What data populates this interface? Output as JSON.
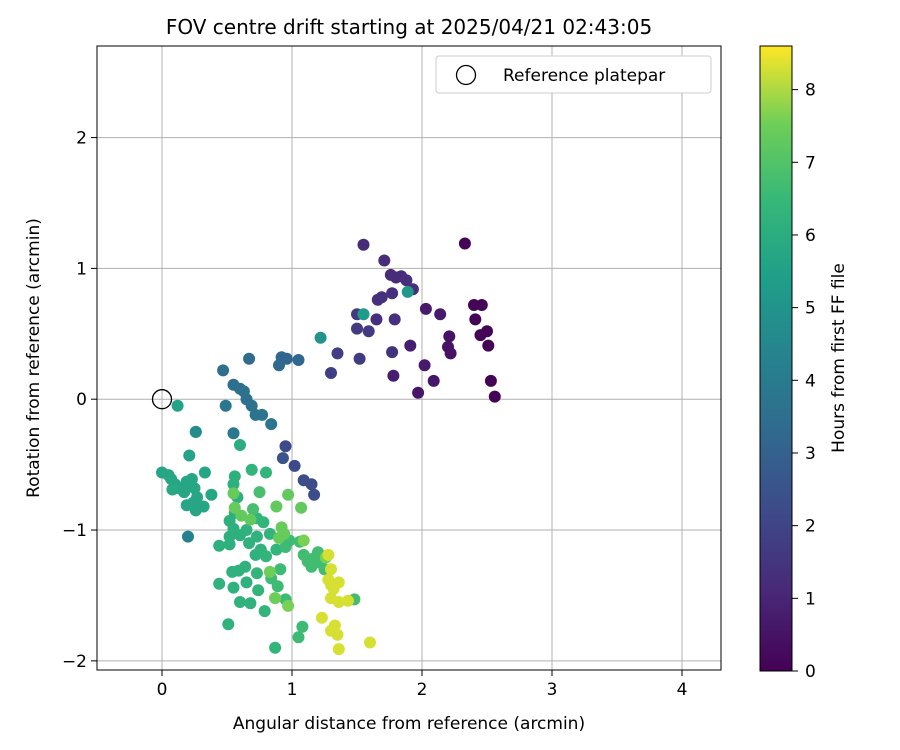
{
  "chart_data": {
    "type": "scatter",
    "title": "FOV centre drift starting at 2025/04/21 02:43:05",
    "xlabel": "Angular distance from reference (arcmin)",
    "ylabel": "Rotation from reference (arcmin)",
    "xlim": [
      -0.5,
      4.3
    ],
    "ylim": [
      -2.07,
      2.7
    ],
    "xticks": [
      0,
      1,
      2,
      3,
      4
    ],
    "yticks": [
      -2,
      -1,
      0,
      1,
      2
    ],
    "xtick_labels": [
      "0",
      "1",
      "2",
      "3",
      "4"
    ],
    "ytick_labels": [
      "−2",
      "−1",
      "0",
      "1",
      "2"
    ],
    "grid": true,
    "legend": {
      "placement": "top-right",
      "entries": [
        "Reference platepar"
      ]
    },
    "reference_point": {
      "x": 0,
      "y": 0
    },
    "colorbar": {
      "label": "Hours from first FF file",
      "range": [
        0,
        8.6
      ],
      "ticks": [
        0,
        1,
        2,
        3,
        4,
        5,
        6,
        7,
        8
      ],
      "tick_labels": [
        "0",
        "1",
        "2",
        "3",
        "4",
        "5",
        "6",
        "7",
        "8"
      ],
      "colormap": "viridis"
    },
    "points": [
      [
        2.33,
        1.19,
        0.1
      ],
      [
        2.4,
        0.72,
        0.1
      ],
      [
        2.46,
        0.72,
        0.1
      ],
      [
        2.41,
        0.61,
        0.1
      ],
      [
        2.45,
        0.49,
        0.1
      ],
      [
        2.5,
        0.52,
        0.1
      ],
      [
        2.51,
        0.41,
        0.1
      ],
      [
        2.53,
        0.14,
        0.1
      ],
      [
        2.56,
        0.02,
        0.1
      ],
      [
        2.21,
        0.48,
        0.5
      ],
      [
        2.2,
        0.4,
        0.5
      ],
      [
        2.22,
        0.35,
        0.5
      ],
      [
        2.09,
        0.14,
        0.6
      ],
      [
        1.97,
        0.05,
        0.6
      ],
      [
        2.02,
        0.26,
        0.7
      ],
      [
        2.03,
        0.69,
        0.7
      ],
      [
        2.14,
        0.65,
        0.7
      ],
      [
        1.91,
        0.41,
        0.8
      ],
      [
        1.78,
        0.18,
        0.8
      ],
      [
        1.55,
        1.18,
        1.2
      ],
      [
        1.71,
        1.06,
        1.2
      ],
      [
        1.76,
        0.95,
        1.2
      ],
      [
        1.84,
        0.94,
        1.2
      ],
      [
        1.8,
        0.93,
        1.2
      ],
      [
        1.88,
        0.91,
        1.3
      ],
      [
        1.93,
        0.84,
        1.3
      ],
      [
        1.77,
        0.81,
        1.3
      ],
      [
        1.69,
        0.78,
        1.3
      ],
      [
        1.66,
        0.76,
        1.3
      ],
      [
        1.65,
        0.61,
        1.3
      ],
      [
        1.79,
        0.61,
        1.3
      ],
      [
        1.77,
        0.36,
        1.4
      ],
      [
        1.5,
        0.65,
        1.7
      ],
      [
        1.5,
        0.54,
        1.7
      ],
      [
        1.59,
        0.52,
        1.7
      ],
      [
        1.52,
        0.31,
        1.7
      ],
      [
        1.35,
        0.35,
        1.8
      ],
      [
        1.3,
        0.2,
        1.8
      ],
      [
        0.95,
        -0.36,
        2.2
      ],
      [
        1.02,
        -0.51,
        2.2
      ],
      [
        1.09,
        -0.62,
        2.3
      ],
      [
        1.15,
        -0.65,
        2.3
      ],
      [
        1.17,
        -0.73,
        2.3
      ],
      [
        0.93,
        -0.45,
        2.5
      ],
      [
        0.92,
        0.32,
        3.2
      ],
      [
        0.96,
        0.31,
        3.2
      ],
      [
        1.05,
        0.3,
        3.2
      ],
      [
        0.9,
        0.26,
        3.3
      ],
      [
        0.67,
        0.31,
        3.4
      ],
      [
        0.47,
        0.22,
        3.5
      ],
      [
        0.55,
        0.11,
        3.5
      ],
      [
        0.6,
        0.08,
        3.5
      ],
      [
        0.63,
        0.06,
        3.6
      ],
      [
        0.65,
        0.0,
        3.6
      ],
      [
        0.69,
        -0.05,
        3.6
      ],
      [
        0.72,
        -0.12,
        3.7
      ],
      [
        0.77,
        -0.12,
        3.7
      ],
      [
        0.49,
        -0.05,
        3.8
      ],
      [
        0.84,
        -0.19,
        3.8
      ],
      [
        0.55,
        -0.26,
        3.9
      ],
      [
        0.2,
        -1.05,
        4.2
      ],
      [
        0.26,
        -0.25,
        4.7
      ],
      [
        0.26,
        -0.25,
        4.7
      ],
      [
        1.22,
        0.47,
        5.0
      ],
      [
        1.89,
        0.82,
        5.2
      ],
      [
        1.55,
        0.65,
        5.3
      ],
      [
        0.12,
        -0.05,
        5.6
      ],
      [
        0.21,
        -0.43,
        5.6
      ],
      [
        0.0,
        -0.56,
        5.7
      ],
      [
        0.05,
        -0.58,
        5.7
      ],
      [
        0.07,
        -0.61,
        5.7
      ],
      [
        0.1,
        -0.65,
        5.7
      ],
      [
        0.13,
        -0.68,
        5.7
      ],
      [
        0.17,
        -0.71,
        5.7
      ],
      [
        0.21,
        -0.66,
        5.7
      ],
      [
        0.19,
        -0.63,
        5.7
      ],
      [
        0.23,
        -0.61,
        5.7
      ],
      [
        0.25,
        -0.68,
        5.7
      ],
      [
        0.27,
        -0.75,
        5.7
      ],
      [
        0.24,
        -0.79,
        5.7
      ],
      [
        0.19,
        -0.81,
        5.7
      ],
      [
        0.26,
        -0.85,
        5.7
      ],
      [
        0.32,
        -0.82,
        5.7
      ],
      [
        0.33,
        -0.56,
        5.7
      ],
      [
        0.38,
        -0.73,
        5.7
      ],
      [
        0.21,
        -0.64,
        5.7
      ],
      [
        0.08,
        -0.69,
        5.8
      ],
      [
        0.6,
        -0.35,
        6.0
      ],
      [
        0.56,
        -0.59,
        6.1
      ],
      [
        0.55,
        -0.65,
        6.1
      ],
      [
        0.58,
        -0.75,
        6.1
      ],
      [
        0.56,
        -0.87,
        6.1
      ],
      [
        0.52,
        -0.93,
        6.1
      ],
      [
        0.55,
        -0.99,
        6.1
      ],
      [
        0.6,
        -1.04,
        6.1
      ],
      [
        0.52,
        -1.05,
        6.1
      ],
      [
        0.52,
        -1.11,
        6.1
      ],
      [
        0.44,
        -1.12,
        6.1
      ],
      [
        0.65,
        -1.0,
        6.2
      ],
      [
        0.67,
        -1.1,
        6.2
      ],
      [
        0.73,
        -1.05,
        6.2
      ],
      [
        0.76,
        -1.15,
        6.2
      ],
      [
        0.72,
        -1.19,
        6.2
      ],
      [
        0.64,
        -1.28,
        6.2
      ],
      [
        0.59,
        -1.31,
        6.2
      ],
      [
        0.54,
        -1.32,
        6.2
      ],
      [
        0.65,
        -1.4,
        6.2
      ],
      [
        0.55,
        -1.44,
        6.2
      ],
      [
        0.44,
        -1.41,
        6.2
      ],
      [
        0.6,
        -1.55,
        6.2
      ],
      [
        0.51,
        -1.72,
        6.2
      ],
      [
        0.68,
        -1.56,
        6.2
      ],
      [
        0.74,
        -1.46,
        6.3
      ],
      [
        0.79,
        -1.62,
        6.3
      ],
      [
        0.73,
        -1.33,
        6.3
      ],
      [
        0.8,
        -1.2,
        6.3
      ],
      [
        0.88,
        -1.15,
        6.3
      ],
      [
        0.83,
        -1.03,
        6.3
      ],
      [
        0.78,
        -0.94,
        6.3
      ],
      [
        0.73,
        -0.91,
        6.3
      ],
      [
        0.87,
        -1.9,
        6.3
      ],
      [
        0.69,
        -0.54,
        6.3
      ],
      [
        0.8,
        -0.56,
        6.3
      ],
      [
        0.84,
        -1.37,
        6.6
      ],
      [
        0.89,
        -1.43,
        6.6
      ],
      [
        0.91,
        -1.3,
        6.6
      ],
      [
        0.95,
        -1.53,
        6.6
      ],
      [
        1.05,
        -1.82,
        6.6
      ],
      [
        1.08,
        -1.74,
        6.6
      ],
      [
        0.95,
        -1.13,
        6.6
      ],
      [
        0.98,
        -1.08,
        6.6
      ],
      [
        1.06,
        -1.09,
        6.7
      ],
      [
        1.09,
        -1.19,
        6.7
      ],
      [
        1.12,
        -1.24,
        6.7
      ],
      [
        1.16,
        -1.22,
        6.7
      ],
      [
        1.2,
        -1.17,
        6.7
      ],
      [
        1.22,
        -1.25,
        6.7
      ],
      [
        1.25,
        -1.3,
        6.7
      ],
      [
        1.15,
        -1.28,
        6.7
      ],
      [
        1.48,
        -1.53,
        6.7
      ],
      [
        0.7,
        -0.84,
        6.8
      ],
      [
        0.75,
        -0.71,
        6.8
      ],
      [
        0.61,
        -0.89,
        7.3
      ],
      [
        0.68,
        -0.92,
        7.3
      ],
      [
        0.88,
        -0.82,
        7.3
      ],
      [
        0.97,
        -0.73,
        7.3
      ],
      [
        1.07,
        -0.83,
        7.3
      ],
      [
        0.55,
        -0.72,
        7.4
      ],
      [
        0.56,
        -0.83,
        7.4
      ],
      [
        0.92,
        -0.98,
        7.4
      ],
      [
        0.9,
        -1.06,
        7.4
      ],
      [
        0.94,
        -1.03,
        7.4
      ],
      [
        0.83,
        -1.32,
        7.5
      ],
      [
        0.87,
        -1.52,
        7.5
      ],
      [
        0.97,
        -1.58,
        7.6
      ],
      [
        1.09,
        -1.08,
        7.6
      ],
      [
        1.26,
        -1.21,
        7.6
      ],
      [
        1.28,
        -1.19,
        8.3
      ],
      [
        1.3,
        -1.3,
        8.3
      ],
      [
        1.28,
        -1.38,
        8.3
      ],
      [
        1.32,
        -1.45,
        8.3
      ],
      [
        1.36,
        -1.4,
        8.3
      ],
      [
        1.3,
        -1.52,
        8.3
      ],
      [
        1.36,
        -1.55,
        8.3
      ],
      [
        1.43,
        -1.54,
        8.3
      ],
      [
        1.33,
        -1.73,
        8.3
      ],
      [
        1.3,
        -1.77,
        8.3
      ],
      [
        1.35,
        -1.8,
        8.3
      ],
      [
        1.36,
        -1.91,
        8.3
      ],
      [
        1.23,
        -1.67,
        8.3
      ],
      [
        1.6,
        -1.86,
        8.3
      ],
      [
        1.3,
        -1.42,
        8.3
      ]
    ]
  }
}
